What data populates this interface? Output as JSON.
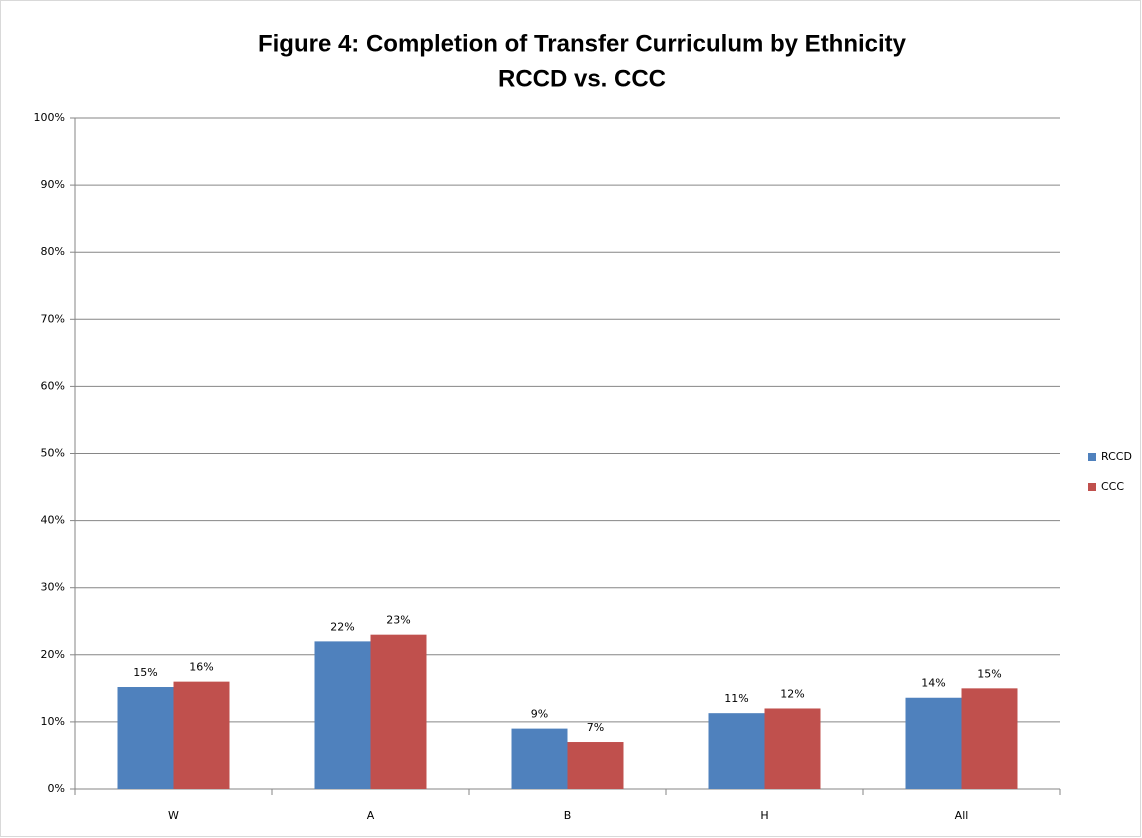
{
  "chart_data": {
    "type": "bar",
    "title": "Figure 4: Completion of Transfer Curriculum by Ethnicity",
    "subtitle": "RCCD vs. CCC",
    "categories": [
      "W",
      "A",
      "B",
      "H",
      "All"
    ],
    "series": [
      {
        "name": "RCCD",
        "color": "#4f81bd",
        "values": [
          15.2,
          22,
          9,
          11.3,
          13.6
        ],
        "value_labels": [
          "15%",
          "22%",
          "9%",
          "11%",
          "14%"
        ]
      },
      {
        "name": "CCC",
        "color": "#c0504d",
        "values": [
          16,
          23,
          7,
          12,
          15
        ],
        "value_labels": [
          "16%",
          "23%",
          "7%",
          "12%",
          "15%"
        ]
      }
    ],
    "ylim": [
      0,
      100
    ],
    "yticks": [
      {
        "value": 0,
        "label": "0%"
      },
      {
        "value": 10,
        "label": "10%"
      },
      {
        "value": 20,
        "label": "20%"
      },
      {
        "value": 30,
        "label": "30%"
      },
      {
        "value": 40,
        "label": "40%"
      },
      {
        "value": 50,
        "label": "50%"
      },
      {
        "value": 60,
        "label": "60%"
      },
      {
        "value": 70,
        "label": "70%"
      },
      {
        "value": 80,
        "label": "80%"
      },
      {
        "value": 90,
        "label": "90%"
      },
      {
        "value": 100,
        "label": "100%"
      }
    ],
    "grid": true,
    "legend": "right"
  }
}
